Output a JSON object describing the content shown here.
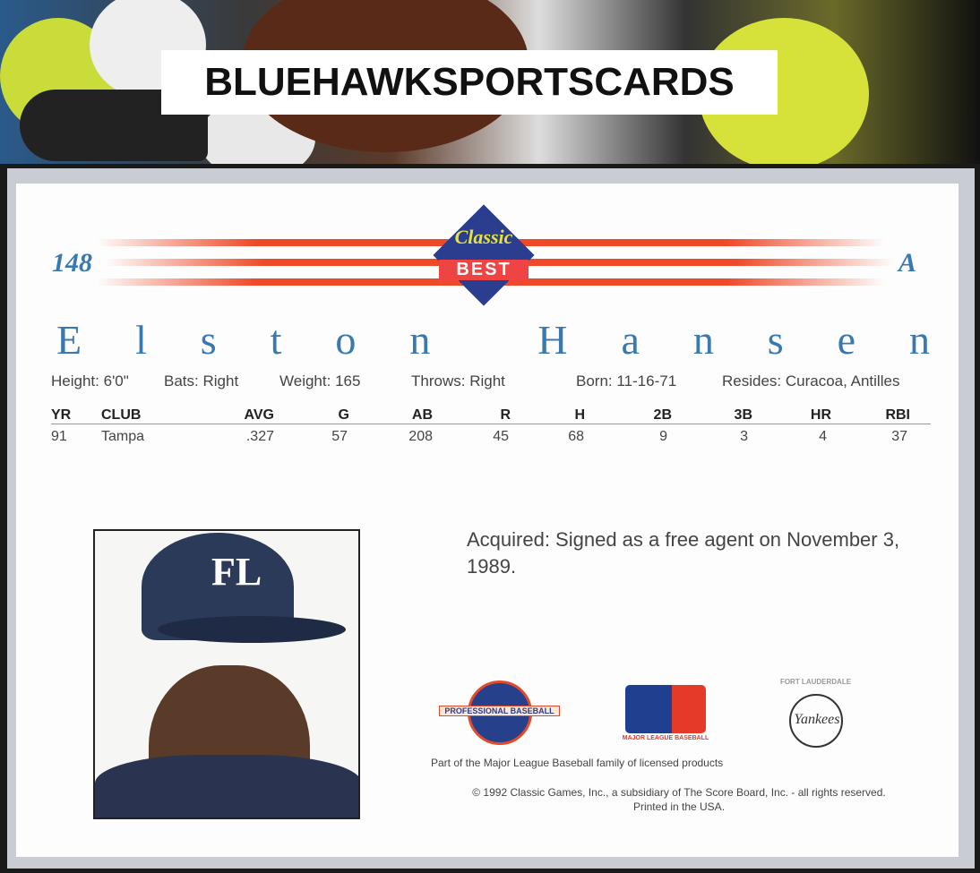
{
  "banner": {
    "brand": "BLUEHAWKSPORTSCARDS"
  },
  "card": {
    "number": "148",
    "series_letter": "A",
    "logo": {
      "top": "Classic",
      "bottom": "BEST"
    },
    "player_name": [
      "E",
      "l",
      "s",
      "t",
      "o",
      "n",
      " ",
      "H",
      "a",
      "n",
      "s",
      "e",
      "n"
    ],
    "bio": [
      {
        "label": "Height:",
        "value": "6'0\""
      },
      {
        "label": "Bats:",
        "value": "Right"
      },
      {
        "label": "Weight:",
        "value": "165"
      },
      {
        "label": "Throws:",
        "value": "Right"
      },
      {
        "label": "Born:",
        "value": "11-16-71"
      },
      {
        "label": "Resides:",
        "value": "Curacoa, Antilles"
      }
    ],
    "stats": {
      "headers": [
        "YR",
        "CLUB",
        "AVG",
        "G",
        "AB",
        "R",
        "H",
        "2B",
        "3B",
        "HR",
        "RBI"
      ],
      "rows": [
        [
          "91",
          "Tampa",
          ".327",
          "57",
          "208",
          "45",
          "68",
          "9",
          "3",
          "4",
          "37"
        ]
      ]
    },
    "acquired": "Acquired:  Signed as a free agent on November 3, 1989.",
    "logos": {
      "pro": "PROFESSIONAL BASEBALL",
      "mlb": "MAJOR LEAGUE BASEBALL",
      "team_top": "FORT LAUDERDALE",
      "team": "Yankees",
      "cap": "FL"
    },
    "licensed": "Part of the Major League Baseball family of licensed products",
    "copyright": "© 1992 Classic Games, Inc., a subsidiary of The Score Board, Inc. - all rights reserved.",
    "printed": "Printed in the USA."
  }
}
